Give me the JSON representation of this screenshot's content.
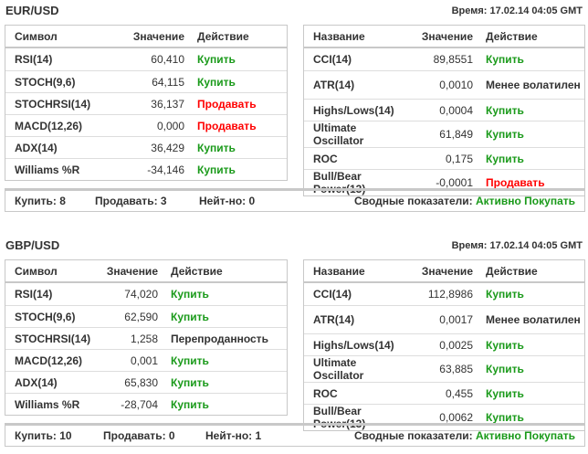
{
  "blocks": [
    {
      "pair": "EUR/USD",
      "time": "Время: 17.02.14 04:05 GMT",
      "left": {
        "headers": [
          "Символ",
          "Значение",
          "Действие"
        ],
        "rows": [
          [
            "RSI(14)",
            "60,410",
            "Купить",
            "buy"
          ],
          [
            "STOCH(9,6)",
            "64,115",
            "Купить",
            "buy"
          ],
          [
            "STOCHRSI(14)",
            "36,137",
            "Продавать",
            "sell"
          ],
          [
            "MACD(12,26)",
            "0,000",
            "Продавать",
            "sell"
          ],
          [
            "ADX(14)",
            "36,429",
            "Купить",
            "buy"
          ],
          [
            "Williams %R",
            "-34,146",
            "Купить",
            "buy"
          ]
        ]
      },
      "right": {
        "headers": [
          "Название",
          "Значение",
          "Действие"
        ],
        "rows": [
          [
            "CCI(14)",
            "89,8551",
            "Купить",
            "buy"
          ],
          [
            "ATR(14)",
            "0,0010",
            "Менее волатилен",
            "neutral"
          ],
          [
            "Highs/Lows(14)",
            "0,0004",
            "Купить",
            "buy"
          ],
          [
            "Ultimate Oscillator",
            "61,849",
            "Купить",
            "buy"
          ],
          [
            "ROC",
            "0,175",
            "Купить",
            "buy"
          ],
          [
            "Bull/Bear Power(13)",
            "-0,0001",
            "Продавать",
            "sell"
          ]
        ]
      },
      "summary": {
        "buy": "Купить: 8",
        "sell": "Продавать: 3",
        "neutral": "Нейт-но: 0",
        "label": "Сводные показатели:",
        "verdict": "Активно Покупать"
      }
    },
    {
      "pair": "GBP/USD",
      "time": "Время: 17.02.14 04:05 GMT",
      "left": {
        "headers": [
          "Символ",
          "Значение",
          "Действие"
        ],
        "rows": [
          [
            "RSI(14)",
            "74,020",
            "Купить",
            "buy"
          ],
          [
            "STOCH(9,6)",
            "62,590",
            "Купить",
            "buy"
          ],
          [
            "STOCHRSI(14)",
            "1,258",
            "Перепроданность",
            "neutral"
          ],
          [
            "MACD(12,26)",
            "0,001",
            "Купить",
            "buy"
          ],
          [
            "ADX(14)",
            "65,830",
            "Купить",
            "buy"
          ],
          [
            "Williams %R",
            "-28,704",
            "Купить",
            "buy"
          ]
        ]
      },
      "right": {
        "headers": [
          "Название",
          "Значение",
          "Действие"
        ],
        "rows": [
          [
            "CCI(14)",
            "112,8986",
            "Купить",
            "buy"
          ],
          [
            "ATR(14)",
            "0,0017",
            "Менее волатилен",
            "neutral"
          ],
          [
            "Highs/Lows(14)",
            "0,0025",
            "Купить",
            "buy"
          ],
          [
            "Ultimate Oscillator",
            "63,885",
            "Купить",
            "buy"
          ],
          [
            "ROC",
            "0,455",
            "Купить",
            "buy"
          ],
          [
            "Bull/Bear Power(13)",
            "0,0062",
            "Купить",
            "buy"
          ]
        ]
      },
      "summary": {
        "buy": "Купить: 10",
        "sell": "Продавать: 0",
        "neutral": "Нейт-но: 1",
        "label": "Сводные показатели:",
        "verdict": "Активно Покупать"
      }
    }
  ],
  "colors": {
    "buy": "#1a9a1a",
    "sell": "#ff0000",
    "border": "#c8c8c8"
  }
}
